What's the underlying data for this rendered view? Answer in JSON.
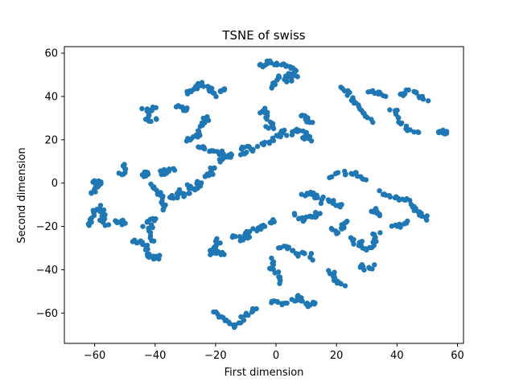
{
  "chart_data": {
    "type": "scatter",
    "title": "TSNE of swiss",
    "xlabel": "First dimension",
    "ylabel": "Second dimension",
    "xlim": [
      -70,
      62
    ],
    "ylim": [
      -74,
      63
    ],
    "xticks": [
      -60,
      -40,
      -20,
      0,
      20,
      40,
      60
    ],
    "yticks": [
      -60,
      -40,
      -20,
      0,
      20,
      40,
      60
    ],
    "grid": false,
    "color": "#1f77b4",
    "clusters": [
      {
        "path": [
          [
            -61,
            1
          ],
          [
            -59,
            -1
          ],
          [
            -58,
            1
          ],
          [
            -60,
            -3
          ],
          [
            -61,
            -5
          ]
        ],
        "n": 18
      },
      {
        "path": [
          [
            -51,
            9
          ],
          [
            -50,
            6
          ],
          [
            -51,
            4
          ],
          [
            -52,
            5
          ]
        ],
        "n": 10
      },
      {
        "path": [
          [
            -62,
            -20
          ],
          [
            -61,
            -16
          ],
          [
            -60,
            -13
          ],
          [
            -58,
            -11
          ],
          [
            -57,
            -15
          ],
          [
            -58,
            -18
          ],
          [
            -56,
            -19
          ],
          [
            -55,
            -20
          ]
        ],
        "n": 26
      },
      {
        "path": [
          [
            -53,
            -18
          ],
          [
            -51,
            -18
          ],
          [
            -50,
            -19
          ]
        ],
        "n": 10
      },
      {
        "path": [
          [
            -48,
            -27
          ],
          [
            -46,
            -27
          ],
          [
            -44,
            -27
          ],
          [
            -43,
            -30
          ],
          [
            -42,
            -33
          ],
          [
            -40,
            -35
          ],
          [
            -38,
            -34
          ]
        ],
        "n": 24
      },
      {
        "path": [
          [
            -44,
            -20
          ],
          [
            -42,
            -18
          ],
          [
            -40,
            -16
          ],
          [
            -42,
            -22
          ],
          [
            -41,
            -28
          ]
        ],
        "n": 16
      },
      {
        "path": [
          [
            -44,
            3
          ],
          [
            -43,
            5
          ],
          [
            -42,
            4
          ]
        ],
        "n": 8
      },
      {
        "path": [
          [
            -42,
            -1
          ],
          [
            -40,
            -3
          ],
          [
            -38,
            -6
          ],
          [
            -37,
            -10
          ],
          [
            -38,
            -13
          ]
        ],
        "n": 18
      },
      {
        "path": [
          [
            -35,
            -5
          ],
          [
            -34,
            -7
          ],
          [
            -32,
            -6
          ],
          [
            -33,
            -4
          ]
        ],
        "n": 10
      },
      {
        "path": [
          [
            -39,
            6
          ],
          [
            -37,
            4
          ],
          [
            -36,
            6
          ],
          [
            -33,
            6
          ]
        ],
        "n": 10
      },
      {
        "path": [
          [
            -33,
            -3
          ],
          [
            -31,
            -5
          ],
          [
            -30,
            -6
          ],
          [
            -28,
            -3
          ],
          [
            -30,
            -1
          ]
        ],
        "n": 12
      },
      {
        "path": [
          [
            -28,
            -3
          ],
          [
            -26,
            -2
          ],
          [
            -25,
            0
          ],
          [
            -27,
            1
          ]
        ],
        "n": 10
      },
      {
        "path": [
          [
            -24,
            2
          ],
          [
            -22,
            4
          ],
          [
            -20,
            6
          ],
          [
            -21,
            8
          ],
          [
            -23,
            3
          ]
        ],
        "n": 12
      },
      {
        "path": [
          [
            -44,
            35
          ],
          [
            -42,
            33
          ],
          [
            -40,
            35
          ],
          [
            -42,
            31
          ],
          [
            -43,
            29
          ],
          [
            -41,
            29
          ],
          [
            -39,
            29
          ]
        ],
        "n": 20
      },
      {
        "path": [
          [
            -33,
            36
          ],
          [
            -31,
            35
          ],
          [
            -30,
            33
          ],
          [
            -29,
            35
          ]
        ],
        "n": 10
      },
      {
        "path": [
          [
            -30,
            41
          ],
          [
            -28,
            43
          ],
          [
            -26,
            45
          ],
          [
            -24,
            46
          ],
          [
            -22,
            44
          ],
          [
            -21,
            41
          ],
          [
            -20,
            40
          ]
        ],
        "n": 22
      },
      {
        "path": [
          [
            -19,
            43
          ],
          [
            -17,
            43
          ]
        ],
        "n": 6
      },
      {
        "path": [
          [
            -30,
            20
          ],
          [
            -28,
            21
          ],
          [
            -26,
            22
          ],
          [
            -25,
            25
          ],
          [
            -24,
            27
          ],
          [
            -23,
            29
          ],
          [
            -23,
            31
          ],
          [
            -24,
            30
          ]
        ],
        "n": 22
      },
      {
        "path": [
          [
            -26,
            17
          ],
          [
            -24,
            16
          ],
          [
            -22,
            15
          ],
          [
            -20,
            14
          ],
          [
            -18,
            14
          ],
          [
            -16,
            13
          ]
        ],
        "n": 18
      },
      {
        "path": [
          [
            -19,
            10
          ],
          [
            -17,
            12
          ],
          [
            -15,
            13
          ],
          [
            -14,
            12
          ]
        ],
        "n": 10
      },
      {
        "path": [
          [
            -12,
            12
          ],
          [
            -10,
            14
          ],
          [
            -8,
            16
          ],
          [
            -11,
            17
          ],
          [
            -12,
            15
          ]
        ],
        "n": 12
      },
      {
        "path": [
          [
            -6,
            17
          ],
          [
            -4,
            18
          ],
          [
            -2,
            19
          ],
          [
            0,
            21
          ],
          [
            2,
            23
          ],
          [
            3,
            25
          ]
        ],
        "n": 16
      },
      {
        "path": [
          [
            -5,
            32
          ],
          [
            -4,
            34
          ],
          [
            -3,
            30
          ],
          [
            -2,
            28
          ],
          [
            -1,
            25
          ],
          [
            -3,
            27
          ]
        ],
        "n": 16
      },
      {
        "path": [
          [
            -2,
            44
          ],
          [
            -1,
            46
          ],
          [
            0,
            48
          ],
          [
            1,
            49
          ]
        ],
        "n": 12
      },
      {
        "path": [
          [
            -6,
            54
          ],
          [
            -4,
            55
          ],
          [
            -2,
            56
          ],
          [
            0,
            55
          ],
          [
            2,
            55
          ],
          [
            4,
            54
          ],
          [
            6,
            53
          ],
          [
            6,
            51
          ],
          [
            4,
            49
          ],
          [
            3,
            47
          ],
          [
            5,
            48
          ],
          [
            7,
            50
          ]
        ],
        "n": 34
      },
      {
        "path": [
          [
            4,
            22
          ],
          [
            6,
            24
          ],
          [
            8,
            25
          ],
          [
            10,
            24
          ]
        ],
        "n": 10
      },
      {
        "path": [
          [
            9,
            32
          ],
          [
            10,
            30
          ],
          [
            11,
            28
          ],
          [
            12,
            29
          ]
        ],
        "n": 10
      },
      {
        "path": [
          [
            9,
            20
          ],
          [
            10,
            22
          ],
          [
            11,
            21
          ],
          [
            12,
            20
          ]
        ],
        "n": 8
      },
      {
        "path": [
          [
            -20,
            -26
          ],
          [
            -19,
            -28
          ],
          [
            -20,
            -30
          ],
          [
            -22,
            -31
          ],
          [
            -21,
            -33
          ],
          [
            -19,
            -32
          ],
          [
            -17,
            -33
          ]
        ],
        "n": 20
      },
      {
        "path": [
          [
            -15,
            -24
          ],
          [
            -13,
            -25
          ],
          [
            -11,
            -26
          ],
          [
            -9,
            -25
          ],
          [
            -10,
            -23
          ],
          [
            -8,
            -23
          ]
        ],
        "n": 16
      },
      {
        "path": [
          [
            -7,
            -20
          ],
          [
            -6,
            -22
          ],
          [
            -4,
            -19
          ]
        ],
        "n": 8
      },
      {
        "path": [
          [
            -2,
            -18
          ],
          [
            -1,
            -17
          ]
        ],
        "n": 5
      },
      {
        "path": [
          [
            -2,
            -35
          ],
          [
            -1,
            -37
          ],
          [
            -2,
            -39
          ],
          [
            0,
            -41
          ],
          [
            1,
            -44
          ],
          [
            2,
            -46
          ]
        ],
        "n": 16
      },
      {
        "path": [
          [
            1,
            -31
          ],
          [
            3,
            -29
          ],
          [
            5,
            -31
          ],
          [
            7,
            -33
          ],
          [
            9,
            -32
          ],
          [
            11,
            -33
          ],
          [
            12,
            -36
          ]
        ],
        "n": 18
      },
      {
        "path": [
          [
            -21,
            -59
          ],
          [
            -19,
            -61
          ],
          [
            -17,
            -63
          ],
          [
            -15,
            -65
          ],
          [
            -14,
            -67
          ],
          [
            -12,
            -64
          ],
          [
            -10,
            -61
          ],
          [
            -8,
            -59
          ],
          [
            -6,
            -58
          ]
        ],
        "n": 26
      },
      {
        "path": [
          [
            -2,
            -54
          ],
          [
            0,
            -55
          ],
          [
            2,
            -56
          ],
          [
            4,
            -55
          ],
          [
            6,
            -54
          ],
          [
            8,
            -52
          ],
          [
            9,
            -55
          ],
          [
            10,
            -57
          ],
          [
            12,
            -56
          ],
          [
            13,
            -54
          ]
        ],
        "n": 26
      },
      {
        "path": [
          [
            6,
            -14
          ],
          [
            7,
            -16
          ],
          [
            9,
            -17
          ],
          [
            11,
            -15
          ],
          [
            13,
            -16
          ],
          [
            14,
            -13
          ]
        ],
        "n": 16
      },
      {
        "path": [
          [
            8,
            -6
          ],
          [
            10,
            -5
          ],
          [
            12,
            -4
          ],
          [
            13,
            -6
          ],
          [
            15,
            -9
          ]
        ],
        "n": 14
      },
      {
        "path": [
          [
            18,
            3
          ],
          [
            20,
            4
          ],
          [
            22,
            5
          ],
          [
            24,
            4
          ],
          [
            26,
            5
          ],
          [
            28,
            3
          ],
          [
            30,
            1
          ]
        ],
        "n": 18
      },
      {
        "path": [
          [
            16,
            -7
          ],
          [
            18,
            -8
          ],
          [
            20,
            -10
          ],
          [
            22,
            -11
          ]
        ],
        "n": 12
      },
      {
        "path": [
          [
            18,
            -21
          ],
          [
            20,
            -23
          ],
          [
            22,
            -20
          ],
          [
            23,
            -17
          ],
          [
            24,
            -19
          ]
        ],
        "n": 14
      },
      {
        "path": [
          [
            25,
            -25
          ],
          [
            27,
            -27
          ],
          [
            29,
            -28
          ],
          [
            26,
            -29
          ]
        ],
        "n": 10
      },
      {
        "path": [
          [
            18,
            -40
          ],
          [
            19,
            -43
          ],
          [
            21,
            -46
          ],
          [
            23,
            -47
          ]
        ],
        "n": 12
      },
      {
        "path": [
          [
            27,
            -38
          ],
          [
            29,
            -39
          ],
          [
            31,
            -40
          ],
          [
            32,
            -38
          ]
        ],
        "n": 10
      },
      {
        "path": [
          [
            31,
            -12
          ],
          [
            32,
            -14
          ],
          [
            34,
            -15
          ],
          [
            33,
            -11
          ]
        ],
        "n": 10
      },
      {
        "path": [
          [
            28,
            -29
          ],
          [
            30,
            -31
          ],
          [
            33,
            -28
          ],
          [
            32,
            -25
          ],
          [
            34,
            -22
          ]
        ],
        "n": 14
      },
      {
        "path": [
          [
            34,
            -4
          ],
          [
            36,
            -5
          ],
          [
            38,
            -6
          ],
          [
            40,
            -7
          ],
          [
            42,
            -7
          ],
          [
            44,
            -8
          ]
        ],
        "n": 14
      },
      {
        "path": [
          [
            38,
            -20
          ],
          [
            40,
            -20
          ],
          [
            42,
            -19
          ],
          [
            44,
            -18
          ]
        ],
        "n": 10
      },
      {
        "path": [
          [
            44,
            -10
          ],
          [
            46,
            -12
          ],
          [
            47,
            -14
          ],
          [
            49,
            -15
          ],
          [
            50,
            -17
          ]
        ],
        "n": 14
      },
      {
        "path": [
          [
            22,
            45
          ],
          [
            23,
            43
          ],
          [
            24,
            41
          ],
          [
            25,
            39
          ],
          [
            26,
            36
          ],
          [
            28,
            34
          ],
          [
            30,
            30
          ],
          [
            32,
            28
          ]
        ],
        "n": 22
      },
      {
        "path": [
          [
            31,
            43
          ],
          [
            33,
            42
          ],
          [
            35,
            41
          ],
          [
            36,
            40
          ]
        ],
        "n": 10
      },
      {
        "path": [
          [
            40,
            42
          ],
          [
            42,
            41
          ],
          [
            44,
            43
          ],
          [
            46,
            42
          ],
          [
            48,
            40
          ],
          [
            50,
            38
          ]
        ],
        "n": 16
      },
      {
        "path": [
          [
            38,
            35
          ],
          [
            40,
            32
          ],
          [
            41,
            29
          ],
          [
            43,
            26
          ],
          [
            44,
            24
          ],
          [
            46,
            24
          ],
          [
            48,
            23
          ]
        ],
        "n": 18
      },
      {
        "path": [
          [
            53,
            24
          ],
          [
            55,
            24
          ],
          [
            57,
            23
          ]
        ],
        "n": 10
      }
    ]
  }
}
